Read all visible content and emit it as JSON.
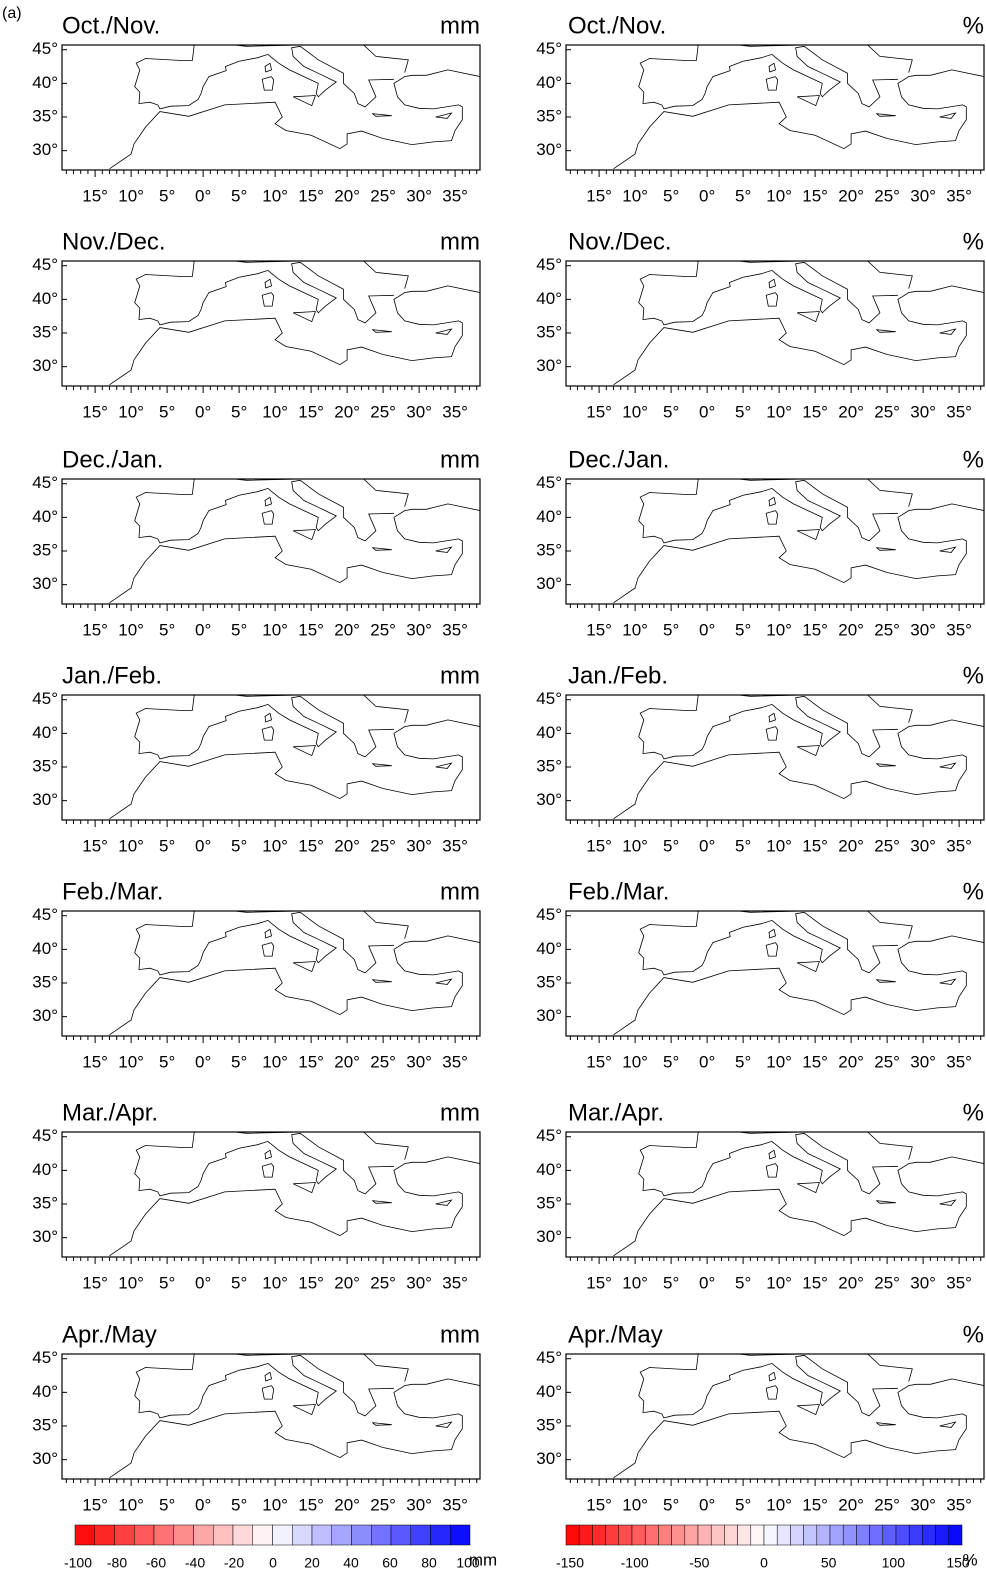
{
  "figure_label": "(a)",
  "rows": [
    {
      "left": {
        "title": "Oct./Nov.",
        "unit": "mm"
      },
      "right": {
        "title": "Oct./Nov.",
        "unit": "%"
      }
    },
    {
      "left": {
        "title": "Nov./Dec.",
        "unit": "mm"
      },
      "right": {
        "title": "Nov./Dec.",
        "unit": "%"
      }
    },
    {
      "left": {
        "title": "Dec./Jan.",
        "unit": "mm"
      },
      "right": {
        "title": "Dec./Jan.",
        "unit": "%"
      }
    },
    {
      "left": {
        "title": "Jan./Feb.",
        "unit": "mm"
      },
      "right": {
        "title": "Jan./Feb.",
        "unit": "%"
      }
    },
    {
      "left": {
        "title": "Feb./Mar.",
        "unit": "mm"
      },
      "right": {
        "title": "Feb./Mar.",
        "unit": "%"
      }
    },
    {
      "left": {
        "title": "Mar./Apr.",
        "unit": "mm"
      },
      "right": {
        "title": "Mar./Apr.",
        "unit": "%"
      }
    },
    {
      "left": {
        "title": "Apr./May",
        "unit": "mm"
      },
      "right": {
        "title": "Apr./May",
        "unit": "%"
      }
    }
  ],
  "lat_labels": [
    "45°",
    "40°",
    "35°",
    "30°"
  ],
  "lon_labels": [
    "15°",
    "10°",
    "5°",
    "0°",
    "5°",
    "10°",
    "15°",
    "20°",
    "25°",
    "30°",
    "35°"
  ],
  "colorbars": [
    {
      "labels": [
        "-100",
        "-80",
        "-60",
        "-40",
        "-20",
        "0",
        "20",
        "40",
        "60",
        "80",
        "100"
      ],
      "unit": "mm"
    },
    {
      "labels": [
        "-150",
        "-100",
        "-50",
        "0",
        "50",
        "100",
        "150"
      ],
      "unit": "%"
    }
  ]
}
